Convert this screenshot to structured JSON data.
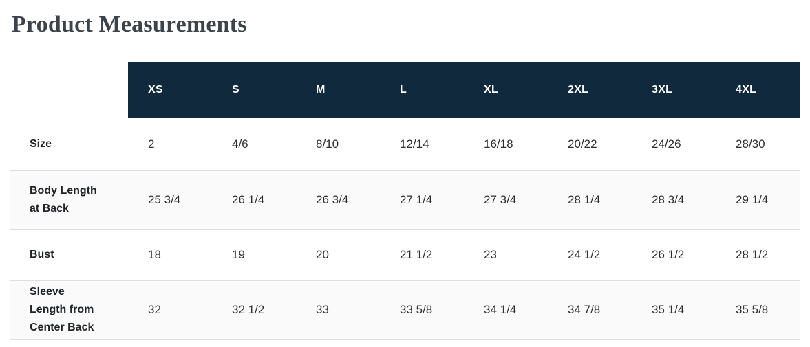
{
  "page": {
    "title": "Product Measurements"
  },
  "table": {
    "size_headers": [
      "XS",
      "S",
      "M",
      "L",
      "XL",
      "2XL",
      "3XL",
      "4XL"
    ],
    "rows": [
      {
        "label": "Size",
        "values": [
          "2",
          "4/6",
          "8/10",
          "12/14",
          "16/18",
          "20/22",
          "24/26",
          "28/30"
        ]
      },
      {
        "label": "Body Length at Back",
        "values": [
          "25 3/4",
          "26 1/4",
          "26 3/4",
          "27 1/4",
          "27 3/4",
          "28 1/4",
          "28 3/4",
          "29 1/4"
        ]
      },
      {
        "label": "Bust",
        "values": [
          "18",
          "19",
          "20",
          "21 1/2",
          "23",
          "24 1/2",
          "26 1/2",
          "28 1/2"
        ]
      },
      {
        "label": "Sleeve Length from Center Back",
        "values": [
          "32",
          "32 1/2",
          "33",
          "33 5/8",
          "34 1/4",
          "34 7/8",
          "35 1/4",
          "35 5/8"
        ]
      }
    ],
    "colors": {
      "header_bg": "#11293c",
      "header_text": "#ffffff",
      "stripe_bg": "#fafafa",
      "row_border": "#dedede",
      "title_text": "#3d434a",
      "cell_text": "#2e2e2e"
    }
  }
}
